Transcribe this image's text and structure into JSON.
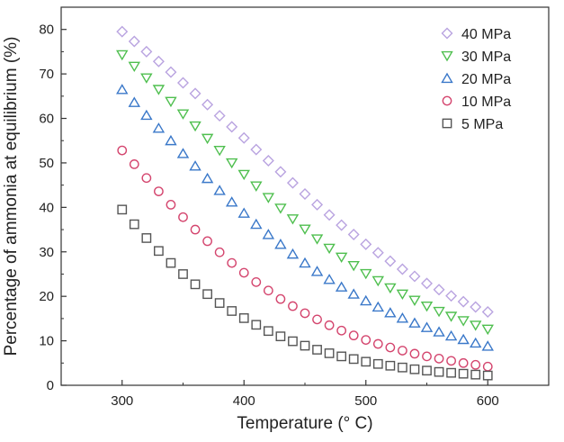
{
  "chart_data": {
    "type": "scatter",
    "title": "",
    "xlabel": "Temperature (° C)",
    "ylabel": "Percentage of ammonia at equilibrium (%)",
    "xlim": [
      250,
      650
    ],
    "ylim": [
      0,
      85
    ],
    "xticks": [
      "300",
      "400",
      "500",
      "600"
    ],
    "yticks": [
      "0",
      "10",
      "20",
      "30",
      "40",
      "50",
      "60",
      "70",
      "80"
    ],
    "legend_position": "top-right",
    "x": [
      300,
      310,
      320,
      330,
      340,
      350,
      360,
      370,
      380,
      390,
      400,
      410,
      420,
      430,
      440,
      450,
      460,
      470,
      480,
      490,
      500,
      510,
      520,
      530,
      540,
      550,
      560,
      570,
      580,
      590,
      600
    ],
    "series": [
      {
        "name": "40 MPa",
        "marker": "diamond",
        "color": "#b9a3e0",
        "values": [
          79.5,
          77.3,
          75.0,
          72.8,
          70.4,
          68.0,
          65.6,
          63.1,
          60.6,
          58.1,
          55.6,
          53.0,
          50.5,
          48.0,
          45.5,
          43.0,
          40.6,
          38.3,
          36.0,
          33.9,
          31.7,
          29.8,
          27.9,
          26.1,
          24.5,
          22.9,
          21.5,
          20.1,
          18.8,
          17.6,
          16.5
        ]
      },
      {
        "name": "30 MPa",
        "marker": "triangle-down",
        "color": "#4fbf4f",
        "values": [
          74.3,
          71.7,
          69.1,
          66.5,
          63.8,
          61.0,
          58.3,
          55.5,
          52.8,
          50.0,
          47.4,
          44.8,
          42.2,
          39.8,
          37.4,
          35.1,
          32.9,
          30.8,
          28.8,
          26.9,
          25.1,
          23.5,
          21.9,
          20.5,
          19.1,
          17.8,
          16.6,
          15.5,
          14.5,
          13.5,
          12.6
        ]
      },
      {
        "name": "20 MPa",
        "marker": "triangle-up",
        "color": "#3a78c9",
        "values": [
          66.5,
          63.6,
          60.7,
          57.8,
          55.0,
          52.1,
          49.3,
          46.5,
          43.8,
          41.2,
          38.7,
          36.2,
          33.9,
          31.7,
          29.5,
          27.5,
          25.6,
          23.8,
          22.1,
          20.5,
          19.0,
          17.6,
          16.3,
          15.1,
          14.0,
          13.0,
          12.0,
          11.1,
          10.3,
          9.5,
          8.8
        ]
      },
      {
        "name": "10 MPa",
        "marker": "circle",
        "color": "#d4456e",
        "values": [
          52.8,
          49.7,
          46.6,
          43.6,
          40.6,
          37.8,
          35.0,
          32.4,
          29.9,
          27.5,
          25.3,
          23.2,
          21.3,
          19.4,
          17.8,
          16.2,
          14.8,
          13.5,
          12.3,
          11.2,
          10.2,
          9.3,
          8.5,
          7.8,
          7.1,
          6.5,
          6.0,
          5.5,
          5.0,
          4.6,
          4.2
        ]
      },
      {
        "name": "5 MPa",
        "marker": "square",
        "color": "#555555",
        "values": [
          39.5,
          36.2,
          33.1,
          30.2,
          27.5,
          25.0,
          22.7,
          20.5,
          18.5,
          16.7,
          15.1,
          13.6,
          12.2,
          11.0,
          9.9,
          8.9,
          8.0,
          7.2,
          6.5,
          5.9,
          5.3,
          4.8,
          4.4,
          4.0,
          3.6,
          3.3,
          3.0,
          2.8,
          2.6,
          2.4,
          2.2
        ]
      }
    ]
  }
}
